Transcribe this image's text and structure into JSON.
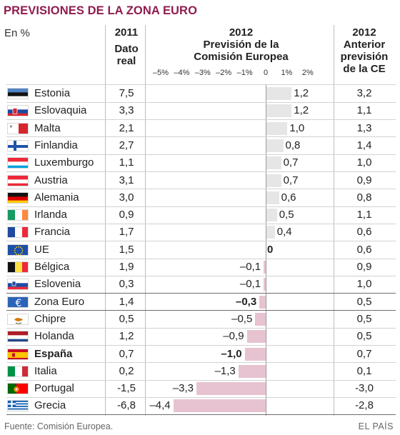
{
  "title": "PREVISIONES DE LA ZONA EURO",
  "unit_label": "En %",
  "columns": {
    "c2011": {
      "year": "2011",
      "line1": "Dato",
      "line2": "real"
    },
    "c2012": {
      "year": "2012",
      "line1": "Previsión de la",
      "line2": "Comisión Europea"
    },
    "cprev": {
      "year": "2012",
      "line1": "Anterior",
      "line2": "previsión",
      "line3": "de la CE"
    }
  },
  "axis_ticks": [
    "–5%",
    "–4%",
    "–3%",
    "–2%",
    "–1%",
    "0",
    "1%",
    "2%"
  ],
  "colors": {
    "title": "#8e1d4e",
    "positive_bar": "#e6e6e6",
    "negative_bar": "#e7c3d1"
  },
  "footer": {
    "source": "Fuente: Comisión Europea.",
    "brand": "EL PAÍS"
  },
  "chart_data": {
    "type": "bar",
    "title": "PREVISIONES DE LA ZONA EURO",
    "orientation": "horizontal",
    "xlim": [
      -5,
      2
    ],
    "categories": [
      "Estonia",
      "Eslovaquia",
      "Malta",
      "Finlandia",
      "Luxemburgo",
      "Austria",
      "Alemania",
      "Irlanda",
      "Francia",
      "UE",
      "Bélgica",
      "Eslovenia",
      "Zona Euro",
      "Chipre",
      "Holanda",
      "España",
      "Italia",
      "Portugal",
      "Grecia"
    ],
    "rows": [
      {
        "country": "Estonia",
        "flag": "flag-estonia",
        "v2011": "7,5",
        "v2012": 1.2,
        "label2012": "1,2",
        "prev": "3,2",
        "bold": false,
        "bold_label": false
      },
      {
        "country": "Eslovaquia",
        "flag": "flag-slovakia",
        "v2011": "3,3",
        "v2012": 1.2,
        "label2012": "1,2",
        "prev": "1,1",
        "bold": false,
        "bold_label": false
      },
      {
        "country": "Malta",
        "flag": "flag-malta",
        "v2011": "2,1",
        "v2012": 1.0,
        "label2012": "1,0",
        "prev": "1,3",
        "bold": false,
        "bold_label": false
      },
      {
        "country": "Finlandia",
        "flag": "flag-finland",
        "v2011": "2,7",
        "v2012": 0.8,
        "label2012": "0,8",
        "prev": "1,4",
        "bold": false,
        "bold_label": false
      },
      {
        "country": "Luxemburgo",
        "flag": "flag-luxembourg",
        "v2011": "1,1",
        "v2012": 0.7,
        "label2012": "0,7",
        "prev": "1,0",
        "bold": false,
        "bold_label": false
      },
      {
        "country": "Austria",
        "flag": "flag-austria",
        "v2011": "3,1",
        "v2012": 0.7,
        "label2012": "0,7",
        "prev": "0,9",
        "bold": false,
        "bold_label": false
      },
      {
        "country": "Alemania",
        "flag": "flag-germany",
        "v2011": "3,0",
        "v2012": 0.6,
        "label2012": "0,6",
        "prev": "0,8",
        "bold": false,
        "bold_label": false
      },
      {
        "country": "Irlanda",
        "flag": "flag-ireland",
        "v2011": "0,9",
        "v2012": 0.5,
        "label2012": "0,5",
        "prev": "1,1",
        "bold": false,
        "bold_label": false
      },
      {
        "country": "Francia",
        "flag": "flag-france",
        "v2011": "1,7",
        "v2012": 0.4,
        "label2012": "0,4",
        "prev": "0,6",
        "bold": false,
        "bold_label": false
      },
      {
        "country": "UE",
        "flag": "flag-eu",
        "v2011": "1,5",
        "v2012": 0.0,
        "label2012": "0",
        "prev": "0,6",
        "bold": false,
        "bold_label": true
      },
      {
        "country": "Bélgica",
        "flag": "flag-belgium",
        "v2011": "1,9",
        "v2012": -0.1,
        "label2012": "–0,1",
        "prev": "0,9",
        "bold": false,
        "bold_label": false
      },
      {
        "country": "Eslovenia",
        "flag": "flag-slovenia",
        "v2011": "0,3",
        "v2012": -0.1,
        "label2012": "–0,1",
        "prev": "1,0",
        "bold": false,
        "bold_label": false
      },
      {
        "country": "Zona Euro",
        "flag": "euro-icon",
        "v2011": "1,4",
        "v2012": -0.3,
        "label2012": "–0,3",
        "prev": "0,5",
        "bold": false,
        "bold_label": true
      },
      {
        "country": "Chipre",
        "flag": "flag-cyprus",
        "v2011": "0,5",
        "v2012": -0.5,
        "label2012": "–0,5",
        "prev": "0,5",
        "bold": false,
        "bold_label": false
      },
      {
        "country": "Holanda",
        "flag": "flag-netherlands",
        "v2011": "1,2",
        "v2012": -0.9,
        "label2012": "–0,9",
        "prev": "0,5",
        "bold": false,
        "bold_label": false
      },
      {
        "country": "España",
        "flag": "flag-spain",
        "v2011": "0,7",
        "v2012": -1.0,
        "label2012": "–1,0",
        "prev": "0,7",
        "bold": true,
        "bold_label": true
      },
      {
        "country": "Italia",
        "flag": "flag-italy",
        "v2011": "0,2",
        "v2012": -1.3,
        "label2012": "–1,3",
        "prev": "0,1",
        "bold": false,
        "bold_label": false
      },
      {
        "country": "Portugal",
        "flag": "flag-portugal",
        "v2011": "-1,5",
        "v2012": -3.3,
        "label2012": "–3,3",
        "prev": "-3,0",
        "bold": false,
        "bold_label": false
      },
      {
        "country": "Grecia",
        "flag": "flag-greece",
        "v2011": "-6,8",
        "v2012": -4.4,
        "label2012": "–4,4",
        "prev": "-2,8",
        "bold": false,
        "bold_label": false
      }
    ]
  }
}
